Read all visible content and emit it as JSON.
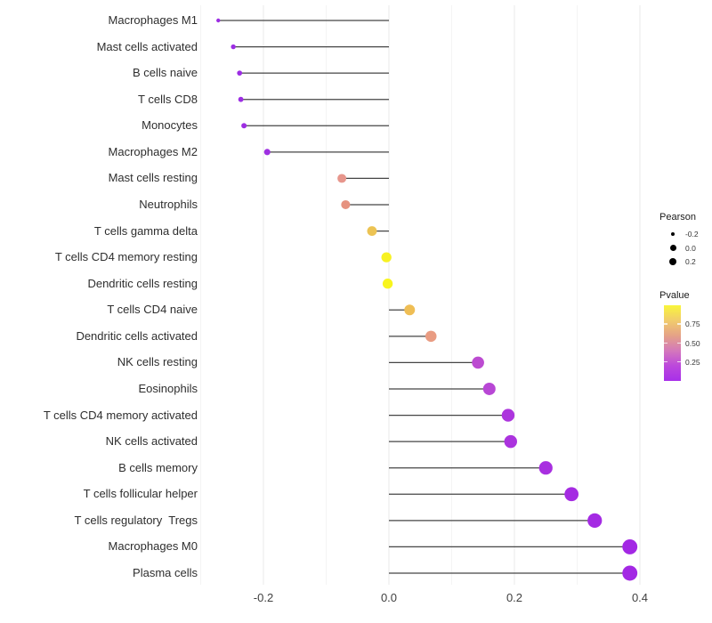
{
  "chart_data": {
    "type": "scatter",
    "variant": "horizontal-lollipop",
    "title": "",
    "xlabel": "",
    "ylabel": "",
    "xlim": [
      -0.305,
      0.455
    ],
    "x_ticks": [
      -0.2,
      0.0,
      0.2,
      0.4
    ],
    "x_tick_labels": [
      "-0.2",
      "0.0",
      "0.2",
      "0.4"
    ],
    "x_minor_ticks": [
      -0.3,
      -0.1,
      0.1,
      0.3
    ],
    "baseline_x": 0.0,
    "grid": "vertical-major-and-minor",
    "legend_position": "right",
    "size_encoding": "Pearson",
    "color_encoding": "Pvalue",
    "points": [
      {
        "label": "Macrophages M1",
        "pearson": -0.272,
        "pvalue": 0.06,
        "color": "#9C2DE3"
      },
      {
        "label": "Mast cells activated",
        "pearson": -0.248,
        "pvalue": 0.07,
        "color": "#9C2DE3"
      },
      {
        "label": "B cells naive",
        "pearson": -0.238,
        "pvalue": 0.08,
        "color": "#9C2DE3"
      },
      {
        "label": "T cells CD8",
        "pearson": -0.236,
        "pvalue": 0.08,
        "color": "#9C2DE3"
      },
      {
        "label": "Monocytes",
        "pearson": -0.231,
        "pvalue": 0.09,
        "color": "#9D2EE2"
      },
      {
        "label": "Macrophages M2",
        "pearson": -0.194,
        "pvalue": 0.12,
        "color": "#9E30E1"
      },
      {
        "label": "Mast cells resting",
        "pearson": -0.075,
        "pvalue": 0.55,
        "color": "#E7968C"
      },
      {
        "label": "Neutrophils",
        "pearson": -0.069,
        "pvalue": 0.55,
        "color": "#E6927F"
      },
      {
        "label": "T cells gamma delta",
        "pearson": -0.027,
        "pvalue": 0.78,
        "color": "#ECC353"
      },
      {
        "label": "T cells CD4 memory resting",
        "pearson": -0.004,
        "pvalue": 0.96,
        "color": "#F7F122"
      },
      {
        "label": "Dendritic cells resting",
        "pearson": -0.002,
        "pvalue": 0.97,
        "color": "#F8F51D"
      },
      {
        "label": "T cells CD4 naive",
        "pearson": 0.033,
        "pvalue": 0.76,
        "color": "#EFBE55"
      },
      {
        "label": "Dendritic cells activated",
        "pearson": 0.067,
        "pvalue": 0.52,
        "color": "#E99C82"
      },
      {
        "label": "NK cells resting",
        "pearson": 0.142,
        "pvalue": 0.24,
        "color": "#BC4BD1"
      },
      {
        "label": "Eosinophils",
        "pearson": 0.16,
        "pvalue": 0.22,
        "color": "#B847D5"
      },
      {
        "label": "T cells CD4 memory activated",
        "pearson": 0.19,
        "pvalue": 0.14,
        "color": "#AC35DD"
      },
      {
        "label": "NK cells activated",
        "pearson": 0.194,
        "pvalue": 0.14,
        "color": "#AB33DE"
      },
      {
        "label": "B cells memory",
        "pearson": 0.25,
        "pvalue": 0.08,
        "color": "#A82FE0"
      },
      {
        "label": "T cells follicular helper",
        "pearson": 0.291,
        "pvalue": 0.05,
        "color": "#A52BE2"
      },
      {
        "label": "T cells regulatory  Tregs",
        "pearson": 0.328,
        "pvalue": 0.04,
        "color": "#A42AE3"
      },
      {
        "label": "Macrophages M0",
        "pearson": 0.384,
        "pvalue": 0.02,
        "color": "#A328E4"
      },
      {
        "label": "Plasma cells",
        "pearson": 0.384,
        "pvalue": 0.02,
        "color": "#A328E4"
      }
    ]
  },
  "legend": {
    "pearson": {
      "title": "Pearson",
      "dot_color": "#000000",
      "sizes": [
        {
          "label": "-0.2",
          "value": -0.2
        },
        {
          "label": "0.0",
          "value": 0.0
        },
        {
          "label": "0.2",
          "value": 0.2
        }
      ]
    },
    "pvalue": {
      "title": "Pvalue",
      "ticks": [
        "0.75",
        "0.50",
        "0.25"
      ],
      "gradient": [
        "#F9F53B",
        "#F1CC6C",
        "#E5A287",
        "#D478BB",
        "#BC48DC",
        "#A82FE9"
      ]
    }
  },
  "colors": {
    "stem": "#454545",
    "grid_major": "#E8E8E8",
    "grid_minor": "#F3F3F3",
    "axis_text": "#404040",
    "category_text": "#2E2E2E",
    "background": "#FFFFFF"
  }
}
